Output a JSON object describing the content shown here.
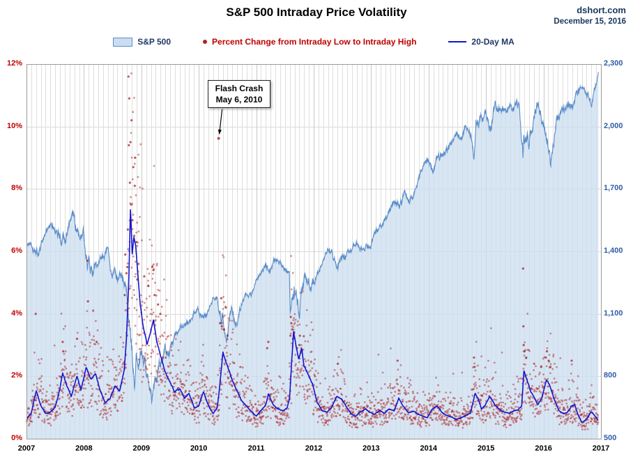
{
  "header": {
    "title": "S&P 500 Intraday Price Volatility",
    "source": "dshort.com",
    "date": "December 15, 2016"
  },
  "annotation": {
    "line1": "Flash Crash",
    "line2": "May 6, 2010",
    "target": [
      2010.345,
      9.62
    ]
  },
  "axes": {
    "left_ticks": [
      "12%",
      "10%",
      "8%",
      "6%",
      "4%",
      "2%",
      "0%"
    ],
    "right_ticks": [
      "2,300",
      "2,000",
      "1,700",
      "1,400",
      "1,100",
      "800",
      "500"
    ],
    "x_ticks": [
      "2007",
      "2008",
      "2009",
      "2010",
      "2011",
      "2012",
      "2013",
      "2014",
      "2015",
      "2016",
      "2017"
    ],
    "left_min": 0,
    "left_max": 12,
    "right_min": 500,
    "right_max": 2300,
    "x_min": 2007,
    "x_max": 2017
  },
  "colors": {
    "area_fill": "rgba(203,221,240,0.75)",
    "area_edge": "#5B8DC8",
    "scatter": "rgba(172,38,38,0.5)",
    "scatter_strong": "rgba(160,28,28,0.72)",
    "ma_line": "#1313CF",
    "grid_month": "#DEDEDE",
    "grid_year": "#C6C6C6",
    "grid_horizontal": "#D9D9D9",
    "frame": "#9A9A9A",
    "left_axis_text": "#C00000",
    "right_axis_text": "#2E5CA6",
    "annotation_arrow": "#000000"
  },
  "chart_data": {
    "type": "combo",
    "title": "S&P 500 Intraday Price Volatility",
    "x_range": [
      2007,
      2017
    ],
    "left_axis": {
      "unit": "percent_intraday_range",
      "min": 0,
      "max": 12,
      "step": 2
    },
    "right_axis": {
      "unit": "index_level",
      "min": 500,
      "max": 2300,
      "step": 300
    },
    "series": [
      {
        "name": "S&P 500",
        "type": "area",
        "axis": "right",
        "start_year": 2007,
        "monthly_closes": [
          1438,
          1407,
          1421,
          1482,
          1531,
          1503,
          1455,
          1474,
          1527,
          1549,
          1481,
          1468,
          1379,
          1331,
          1323,
          1386,
          1400,
          1280,
          1267,
          1283,
          1166,
          969,
          896,
          903,
          826,
          735,
          798,
          873,
          919,
          919,
          987,
          1021,
          1057,
          1036,
          1096,
          1115,
          1074,
          1104,
          1169,
          1187,
          1089,
          1031,
          1102,
          1049,
          1141,
          1183,
          1181,
          1258,
          1286,
          1327,
          1326,
          1364,
          1345,
          1321,
          1292,
          1219,
          1131,
          1253,
          1247,
          1258,
          1312,
          1366,
          1408,
          1398,
          1310,
          1362,
          1379,
          1407,
          1441,
          1412,
          1416,
          1426,
          1498,
          1515,
          1569,
          1598,
          1631,
          1606,
          1686,
          1633,
          1682,
          1757,
          1806,
          1848,
          1783,
          1859,
          1872,
          1884,
          1924,
          1960,
          1931,
          2003,
          1972,
          2018,
          2068,
          2059,
          1995,
          2105,
          2068,
          2086,
          2107,
          2063,
          2104,
          1972,
          1920,
          2079,
          2080,
          2044,
          1940,
          1932,
          2060,
          2065,
          2097,
          2099,
          2174,
          2171,
          2168,
          2126,
          2199,
          2262
        ],
        "extra_points": [
          [
            2007.0,
            1418
          ],
          [
            2007.79,
            1565
          ],
          [
            2008.06,
            1310
          ],
          [
            2008.88,
            750
          ],
          [
            2009.18,
            677
          ],
          [
            2010.35,
            1110
          ],
          [
            2010.39,
            1068
          ],
          [
            2010.505,
            1015
          ],
          [
            2011.59,
            1119
          ],
          [
            2011.755,
            1074
          ],
          [
            2014.79,
            1862
          ],
          [
            2015.645,
            1868
          ],
          [
            2016.12,
            1829
          ],
          [
            2016.955,
            2262
          ]
        ]
      },
      {
        "name": "Percent Change from Intraday Low to Intraday High",
        "type": "scatter",
        "axis": "left",
        "unit": "%",
        "typical_range": [
          0.3,
          2.5
        ],
        "outliers": [
          [
            2007.16,
            4.0
          ],
          [
            2007.63,
            3.1
          ],
          [
            2007.64,
            2.8
          ],
          [
            2007.88,
            3.2
          ],
          [
            2008.06,
            5.7
          ],
          [
            2008.07,
            4.4
          ],
          [
            2008.22,
            3.1
          ],
          [
            2008.71,
            4.6
          ],
          [
            2008.72,
            5.9
          ],
          [
            2008.74,
            5.3
          ],
          [
            2008.755,
            5.5
          ],
          [
            2008.765,
            6.7
          ],
          [
            2008.775,
            11.6
          ],
          [
            2008.782,
            9.4
          ],
          [
            2008.79,
            10.9
          ],
          [
            2008.8,
            8.2
          ],
          [
            2008.81,
            9.5
          ],
          [
            2008.82,
            7.5
          ],
          [
            2008.83,
            10.2
          ],
          [
            2008.845,
            7.0
          ],
          [
            2008.86,
            8.7
          ],
          [
            2008.875,
            6.5
          ],
          [
            2008.885,
            8.1
          ],
          [
            2008.89,
            9.0
          ],
          [
            2008.915,
            6.3
          ],
          [
            2008.93,
            5.1
          ],
          [
            2008.95,
            5.6
          ],
          [
            2009.05,
            5.2
          ],
          [
            2009.12,
            4.9
          ],
          [
            2009.19,
            5.5
          ],
          [
            2009.21,
            5.4
          ],
          [
            2009.23,
            4.6
          ],
          [
            2009.29,
            4.3
          ],
          [
            2009.33,
            4.0
          ],
          [
            2010.37,
            3.7
          ],
          [
            2010.39,
            4.5
          ],
          [
            2010.4,
            3.6
          ],
          [
            2010.44,
            3.5
          ],
          [
            2010.47,
            4.2
          ],
          [
            2010.5,
            3.3
          ],
          [
            2011.19,
            2.9
          ],
          [
            2011.21,
            3.1
          ],
          [
            2011.595,
            3.3
          ],
          [
            2011.6,
            3.9
          ],
          [
            2011.61,
            3.7
          ],
          [
            2011.625,
            3.5
          ],
          [
            2011.64,
            3.2
          ],
          [
            2011.66,
            3.4
          ],
          [
            2011.71,
            2.9
          ],
          [
            2011.75,
            3.0
          ],
          [
            2011.76,
            3.3
          ],
          [
            2011.79,
            2.8
          ],
          [
            2012.42,
            2.4
          ],
          [
            2013.46,
            2.5
          ],
          [
            2014.79,
            2.6
          ],
          [
            2014.8,
            2.3
          ],
          [
            2015.645,
            5.45
          ],
          [
            2015.65,
            3.6
          ],
          [
            2015.655,
            3.0
          ],
          [
            2015.67,
            2.8
          ],
          [
            2015.7,
            2.6
          ],
          [
            2015.96,
            2.3
          ],
          [
            2016.04,
            2.6
          ],
          [
            2016.06,
            2.8
          ],
          [
            2016.09,
            2.5
          ],
          [
            2016.12,
            2.3
          ],
          [
            2016.49,
            2.5
          ]
        ]
      },
      {
        "name": "20-Day MA",
        "type": "line",
        "axis": "left",
        "unit": "%",
        "points": [
          [
            2007.0,
            0.65
          ],
          [
            2007.08,
            0.8
          ],
          [
            2007.17,
            1.55
          ],
          [
            2007.25,
            1.05
          ],
          [
            2007.33,
            0.8
          ],
          [
            2007.42,
            0.85
          ],
          [
            2007.5,
            1.0
          ],
          [
            2007.58,
            1.6
          ],
          [
            2007.63,
            2.1
          ],
          [
            2007.7,
            1.7
          ],
          [
            2007.78,
            1.35
          ],
          [
            2007.88,
            2.0
          ],
          [
            2007.95,
            1.55
          ],
          [
            2008.04,
            2.3
          ],
          [
            2008.12,
            1.9
          ],
          [
            2008.2,
            2.1
          ],
          [
            2008.29,
            1.5
          ],
          [
            2008.37,
            1.15
          ],
          [
            2008.46,
            1.3
          ],
          [
            2008.54,
            1.7
          ],
          [
            2008.62,
            1.5
          ],
          [
            2008.7,
            2.2
          ],
          [
            2008.74,
            3.2
          ],
          [
            2008.78,
            5.0
          ],
          [
            2008.81,
            7.4
          ],
          [
            2008.84,
            5.9
          ],
          [
            2008.87,
            6.5
          ],
          [
            2008.9,
            6.2
          ],
          [
            2008.94,
            5.2
          ],
          [
            2008.98,
            4.3
          ],
          [
            2009.04,
            3.5
          ],
          [
            2009.1,
            3.0
          ],
          [
            2009.16,
            3.4
          ],
          [
            2009.21,
            3.8
          ],
          [
            2009.27,
            3.1
          ],
          [
            2009.33,
            2.7
          ],
          [
            2009.42,
            2.1
          ],
          [
            2009.5,
            1.8
          ],
          [
            2009.58,
            1.5
          ],
          [
            2009.67,
            1.6
          ],
          [
            2009.75,
            1.3
          ],
          [
            2009.83,
            1.45
          ],
          [
            2009.92,
            1.0
          ],
          [
            2010.0,
            1.05
          ],
          [
            2010.08,
            1.5
          ],
          [
            2010.17,
            1.05
          ],
          [
            2010.25,
            0.8
          ],
          [
            2010.32,
            1.0
          ],
          [
            2010.36,
            1.6
          ],
          [
            2010.42,
            2.75
          ],
          [
            2010.5,
            2.3
          ],
          [
            2010.58,
            1.9
          ],
          [
            2010.67,
            1.5
          ],
          [
            2010.75,
            1.2
          ],
          [
            2010.83,
            1.05
          ],
          [
            2010.92,
            0.85
          ],
          [
            2011.0,
            0.72
          ],
          [
            2011.08,
            0.9
          ],
          [
            2011.17,
            1.1
          ],
          [
            2011.21,
            1.45
          ],
          [
            2011.29,
            1.1
          ],
          [
            2011.37,
            0.95
          ],
          [
            2011.46,
            0.9
          ],
          [
            2011.54,
            1.0
          ],
          [
            2011.58,
            1.3
          ],
          [
            2011.62,
            2.6
          ],
          [
            2011.65,
            3.45
          ],
          [
            2011.7,
            2.9
          ],
          [
            2011.74,
            2.55
          ],
          [
            2011.79,
            2.9
          ],
          [
            2011.83,
            2.35
          ],
          [
            2011.92,
            2.0
          ],
          [
            2011.98,
            1.75
          ],
          [
            2012.06,
            1.15
          ],
          [
            2012.15,
            0.9
          ],
          [
            2012.23,
            0.85
          ],
          [
            2012.31,
            1.0
          ],
          [
            2012.4,
            1.35
          ],
          [
            2012.48,
            1.3
          ],
          [
            2012.56,
            1.05
          ],
          [
            2012.65,
            0.8
          ],
          [
            2012.73,
            0.72
          ],
          [
            2012.81,
            0.85
          ],
          [
            2012.9,
            0.95
          ],
          [
            2012.98,
            0.85
          ],
          [
            2013.06,
            0.78
          ],
          [
            2013.15,
            0.9
          ],
          [
            2013.23,
            0.82
          ],
          [
            2013.31,
            0.95
          ],
          [
            2013.4,
            0.9
          ],
          [
            2013.48,
            1.3
          ],
          [
            2013.56,
            1.05
          ],
          [
            2013.65,
            0.82
          ],
          [
            2013.73,
            0.88
          ],
          [
            2013.81,
            0.8
          ],
          [
            2013.9,
            0.72
          ],
          [
            2013.98,
            0.68
          ],
          [
            2014.06,
            0.95
          ],
          [
            2014.15,
            1.05
          ],
          [
            2014.23,
            0.85
          ],
          [
            2014.31,
            0.75
          ],
          [
            2014.4,
            0.7
          ],
          [
            2014.48,
            0.62
          ],
          [
            2014.56,
            0.66
          ],
          [
            2014.65,
            0.75
          ],
          [
            2014.73,
            0.82
          ],
          [
            2014.81,
            1.45
          ],
          [
            2014.86,
            1.3
          ],
          [
            2014.92,
            0.95
          ],
          [
            2014.98,
            1.05
          ],
          [
            2015.06,
            1.35
          ],
          [
            2015.15,
            1.1
          ],
          [
            2015.23,
            0.95
          ],
          [
            2015.31,
            0.85
          ],
          [
            2015.4,
            0.82
          ],
          [
            2015.48,
            0.88
          ],
          [
            2015.56,
            0.92
          ],
          [
            2015.62,
            1.05
          ],
          [
            2015.66,
            2.2
          ],
          [
            2015.71,
            1.9
          ],
          [
            2015.77,
            1.55
          ],
          [
            2015.83,
            1.35
          ],
          [
            2015.9,
            1.1
          ],
          [
            2015.97,
            1.3
          ],
          [
            2016.05,
            1.9
          ],
          [
            2016.11,
            1.7
          ],
          [
            2016.19,
            1.25
          ],
          [
            2016.27,
            0.9
          ],
          [
            2016.35,
            0.8
          ],
          [
            2016.42,
            0.85
          ],
          [
            2016.49,
            1.05
          ],
          [
            2016.54,
            1.1
          ],
          [
            2016.6,
            0.78
          ],
          [
            2016.67,
            0.52
          ],
          [
            2016.75,
            0.62
          ],
          [
            2016.83,
            0.88
          ],
          [
            2016.9,
            0.72
          ],
          [
            2016.955,
            0.58
          ]
        ]
      }
    ]
  }
}
